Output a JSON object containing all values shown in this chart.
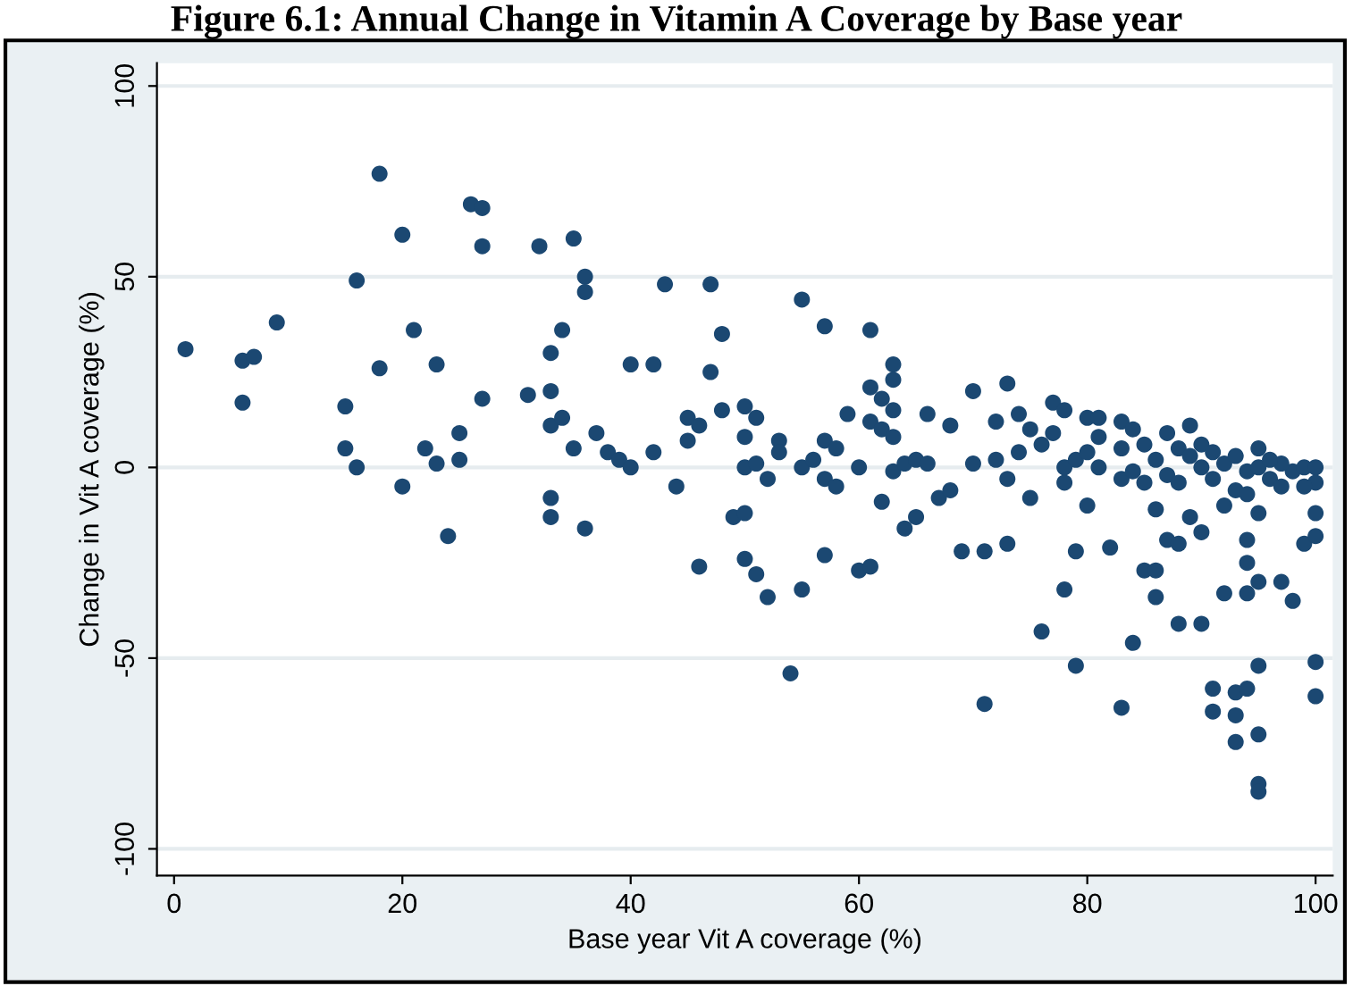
{
  "chart_data": {
    "type": "scatter",
    "title": "Figure 6.1: Annual Change in Vitamin A Coverage by Base year",
    "xlabel": "Base year Vit A coverage (%)",
    "ylabel": "Change in Vit A coverage (%)",
    "xlim": [
      -1.5,
      101.5
    ],
    "ylim": [
      -107,
      106
    ],
    "xticks": [
      0,
      20,
      40,
      60,
      80,
      100
    ],
    "yticks": [
      -100,
      -50,
      0,
      50,
      100
    ],
    "grid": "y",
    "marker": "circle",
    "legend": false,
    "series": [
      {
        "color": "#1b4872",
        "x": [
          1,
          6,
          7,
          6,
          9,
          15,
          15,
          16,
          16,
          18,
          18,
          20,
          20,
          21,
          22,
          23,
          23,
          24,
          25,
          25,
          26,
          27,
          27,
          27,
          31,
          32,
          33,
          33,
          33,
          33,
          33,
          34,
          34,
          35,
          35,
          36,
          36,
          36,
          37,
          38,
          39,
          40,
          40,
          42,
          42,
          43,
          44,
          45,
          45,
          46,
          46,
          47,
          47,
          48,
          48,
          49,
          50,
          50,
          50,
          50,
          50,
          51,
          51,
          51,
          52,
          52,
          53,
          53,
          54,
          55,
          55,
          55,
          56,
          57,
          57,
          57,
          57,
          58,
          58,
          59,
          60,
          60,
          61,
          61,
          61,
          61,
          62,
          62,
          62,
          63,
          63,
          63,
          63,
          63,
          64,
          64,
          65,
          65,
          66,
          66,
          67,
          68,
          68,
          69,
          70,
          70,
          71,
          71,
          72,
          72,
          73,
          73,
          73,
          74,
          74,
          75,
          75,
          76,
          76,
          77,
          77,
          78,
          78,
          78,
          78,
          79,
          79,
          79,
          80,
          80,
          80,
          81,
          81,
          81,
          82,
          83,
          83,
          83,
          83,
          84,
          84,
          84,
          85,
          85,
          85,
          86,
          86,
          86,
          86,
          87,
          87,
          87,
          88,
          88,
          88,
          88,
          89,
          89,
          89,
          90,
          90,
          90,
          90,
          91,
          91,
          91,
          91,
          92,
          92,
          92,
          93,
          93,
          93,
          93,
          93,
          94,
          94,
          94,
          94,
          94,
          94,
          95,
          95,
          95,
          95,
          95,
          95,
          95,
          95,
          96,
          97,
          97,
          98,
          98,
          99,
          99,
          100,
          100,
          100,
          100,
          100,
          100,
          99,
          97,
          96
        ],
        "values": [
          31,
          28,
          29,
          17,
          38,
          16,
          5,
          0,
          49,
          77,
          26,
          61,
          -5,
          36,
          5,
          1,
          27,
          -18,
          9,
          2,
          69,
          68,
          58,
          18,
          19,
          58,
          30,
          20,
          11,
          -8,
          -13,
          36,
          13,
          60,
          5,
          50,
          46,
          -16,
          9,
          4,
          2,
          0,
          27,
          27,
          4,
          48,
          -5,
          7,
          13,
          11,
          -26,
          48,
          25,
          35,
          15,
          -13,
          -12,
          16,
          8,
          0,
          -24,
          13,
          1,
          -28,
          -3,
          -34,
          7,
          4,
          -54,
          44,
          -32,
          0,
          2,
          37,
          7,
          -3,
          -23,
          -5,
          5,
          14,
          0,
          -27,
          36,
          21,
          12,
          -26,
          10,
          -9,
          18,
          27,
          23,
          15,
          8,
          -1,
          -16,
          1,
          2,
          -13,
          1,
          14,
          -8,
          -6,
          11,
          -22,
          1,
          20,
          -62,
          -22,
          2,
          12,
          22,
          -20,
          -3,
          4,
          14,
          10,
          -8,
          -43,
          6,
          9,
          17,
          15,
          -4,
          0,
          -32,
          -52,
          2,
          -22,
          4,
          13,
          -10,
          8,
          0,
          13,
          -21,
          -63,
          5,
          12,
          -3,
          -46,
          -1,
          10,
          -27,
          -4,
          6,
          -27,
          -34,
          2,
          -11,
          9,
          -19,
          -2,
          -20,
          -41,
          -4,
          5,
          -13,
          3,
          11,
          -17,
          -41,
          6,
          0,
          -58,
          -64,
          -3,
          4,
          -33,
          -10,
          1,
          -72,
          -59,
          -65,
          -6,
          3,
          -58,
          -33,
          -19,
          -25,
          -1,
          -7,
          -83,
          -85,
          -70,
          -52,
          -30,
          -12,
          5,
          0,
          -3,
          -30,
          -5,
          -35,
          -1,
          -20,
          0,
          -51,
          -60,
          -12,
          -18,
          0,
          -4,
          -5,
          1,
          2
        ]
      }
    ]
  }
}
